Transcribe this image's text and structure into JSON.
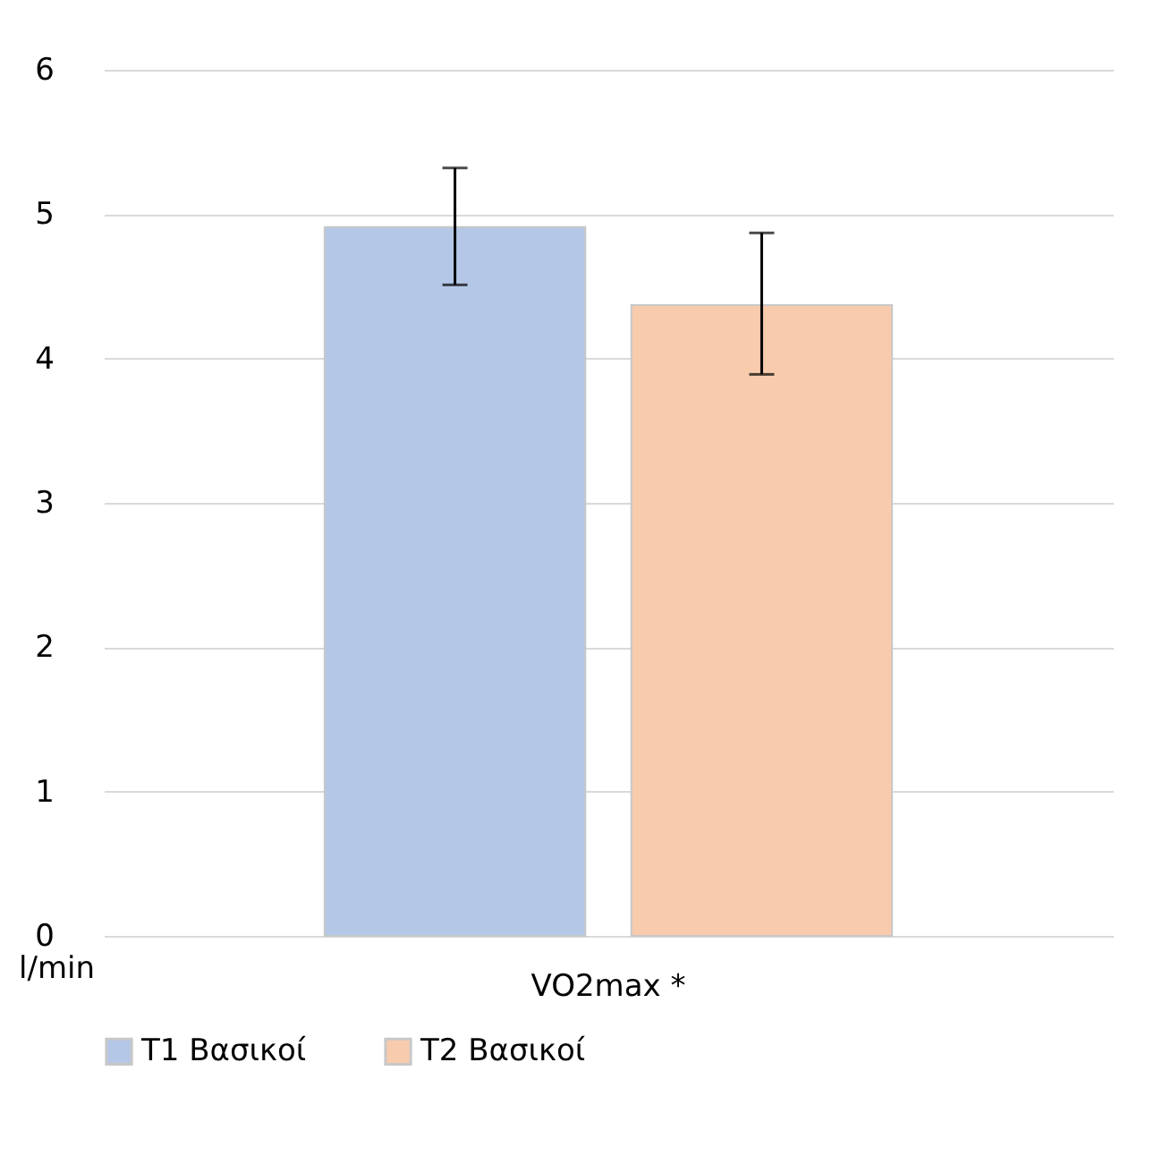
{
  "chart_data": {
    "type": "bar",
    "categories": [
      "VO2max *"
    ],
    "ylabel": "l/min",
    "series": [
      {
        "name": "T1 Βασικοί",
        "color": "#b4c7e7",
        "values": [
          4.91
        ],
        "errors": [
          [
            4.51,
            5.32
          ]
        ]
      },
      {
        "name": "T2 Βασικοί",
        "color": "#f8cbad",
        "values": [
          4.37
        ],
        "errors": [
          [
            3.89,
            4.87
          ]
        ]
      }
    ],
    "ylim": [
      0,
      6
    ],
    "yticks": [
      0,
      1,
      2,
      3,
      4,
      5,
      6
    ],
    "grid": "y",
    "legend": "bottom"
  }
}
